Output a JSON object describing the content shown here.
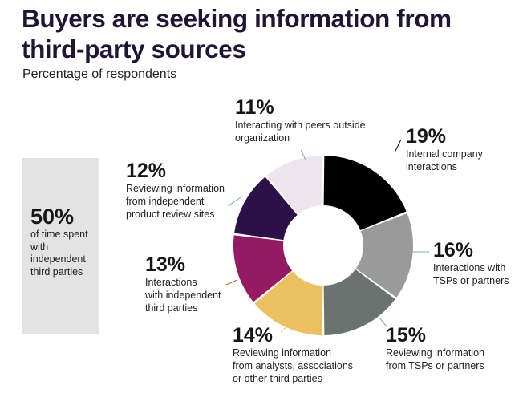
{
  "title": "Buyers are seeking information from third-party sources",
  "subtitle": "Percentage of respondents",
  "side_note": {
    "value": "50%",
    "text": "of time spent with independent third parties"
  },
  "chart_data": {
    "type": "pie",
    "variant": "donut",
    "title": "Buyers are seeking information from third-party sources",
    "subtitle": "Percentage of respondents",
    "unit": "%",
    "slices": [
      {
        "label": "Internal company interactions",
        "value": 19,
        "display": "19%",
        "color": "#000000"
      },
      {
        "label": "Interactions with TSPs or partners",
        "value": 16,
        "display": "16%",
        "color": "#9a9a9a"
      },
      {
        "label": "Reviewing information from TSPs or partners",
        "value": 15,
        "display": "15%",
        "color": "#6b7370"
      },
      {
        "label": "Reviewing information from analysts, associations or other third parties",
        "value": 14,
        "display": "14%",
        "color": "#ecc05e"
      },
      {
        "label": "Interactions with independent third parties",
        "value": 13,
        "display": "13%",
        "color": "#951a63"
      },
      {
        "label": "Reviewing information from independent product review sites",
        "value": 12,
        "display": "12%",
        "color": "#2b1147"
      },
      {
        "label": "Interacting with peers outside organization",
        "value": 11,
        "display": "11%",
        "color": "#ede4ee"
      }
    ]
  }
}
